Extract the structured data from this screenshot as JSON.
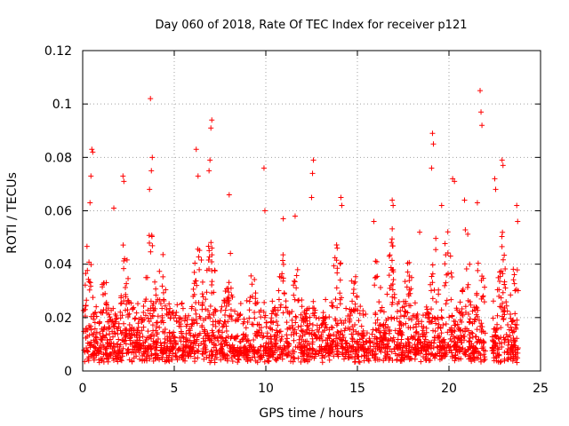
{
  "chart_data": {
    "type": "scatter",
    "title": "Day 060 of 2018, Rate Of TEC Index for receiver p121",
    "xlabel": "GPS time / hours",
    "ylabel": "ROTI / TECUs",
    "xlim": [
      0,
      25
    ],
    "ylim": [
      0,
      0.12
    ],
    "x_ticks": [
      0,
      5,
      10,
      15,
      20,
      25
    ],
    "y_ticks": [
      0,
      0.02,
      0.04,
      0.06,
      0.08,
      0.1,
      0.12
    ],
    "x_tick_labels": [
      "0",
      "5",
      "10",
      "15",
      "20",
      "25"
    ],
    "y_tick_labels": [
      "0",
      "0.02",
      "0.04",
      "0.06",
      "0.08",
      "0.1",
      "0.12"
    ],
    "grid": true,
    "marker": "+",
    "color": "#ff0000",
    "series": [
      {
        "name": "ROTI",
        "points_sample": [
          [
            3.7,
            0.102
          ],
          [
            21.7,
            0.105
          ],
          [
            21.75,
            0.097
          ],
          [
            21.8,
            0.092
          ],
          [
            19.1,
            0.089
          ],
          [
            19.15,
            0.085
          ],
          [
            19.05,
            0.076
          ],
          [
            7.05,
            0.094
          ],
          [
            7.0,
            0.091
          ],
          [
            6.95,
            0.079
          ],
          [
            6.9,
            0.075
          ],
          [
            6.2,
            0.083
          ],
          [
            12.6,
            0.079
          ],
          [
            12.55,
            0.074
          ],
          [
            12.5,
            0.065
          ],
          [
            22.9,
            0.079
          ],
          [
            22.95,
            0.077
          ],
          [
            9.9,
            0.076
          ],
          [
            0.5,
            0.083
          ],
          [
            0.55,
            0.082
          ],
          [
            0.45,
            0.073
          ],
          [
            0.4,
            0.063
          ],
          [
            3.8,
            0.08
          ],
          [
            3.75,
            0.075
          ],
          [
            3.65,
            0.068
          ],
          [
            20.2,
            0.072
          ],
          [
            20.3,
            0.071
          ],
          [
            2.2,
            0.073
          ],
          [
            2.25,
            0.071
          ],
          [
            22.5,
            0.072
          ],
          [
            22.55,
            0.068
          ],
          [
            6.3,
            0.073
          ],
          [
            14.1,
            0.065
          ],
          [
            14.15,
            0.062
          ],
          [
            16.9,
            0.064
          ],
          [
            16.95,
            0.062
          ],
          [
            23.7,
            0.062
          ],
          [
            23.75,
            0.056
          ],
          [
            21.55,
            0.063
          ],
          [
            20.85,
            0.064
          ],
          [
            19.6,
            0.062
          ],
          [
            1.7,
            0.061
          ],
          [
            10.95,
            0.057
          ],
          [
            11.6,
            0.058
          ],
          [
            8.0,
            0.066
          ],
          [
            9.95,
            0.06
          ],
          [
            15.9,
            0.056
          ],
          [
            18.4,
            0.052
          ]
        ]
      }
    ]
  }
}
